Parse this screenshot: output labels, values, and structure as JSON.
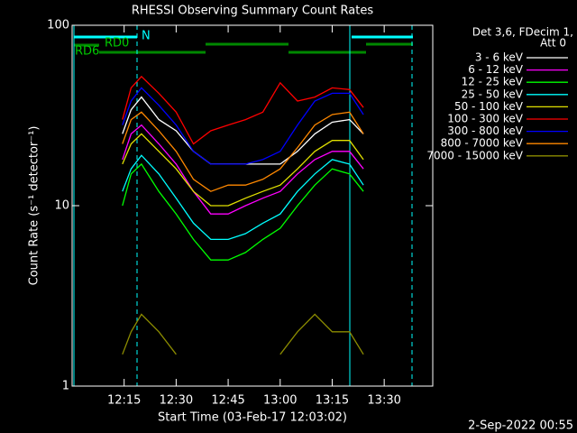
{
  "chart_data": {
    "type": "line",
    "title": "RHESSI Observing Summary Count Rates",
    "x_label": "Start Time (03-Feb-17 12:03:02)",
    "y_label": "Count Rate (s⁻¹ detector⁻¹)",
    "legend_title": [
      "Det 3,6, FDecim 1,",
      "Att 0"
    ],
    "legend": "right",
    "annotations": [
      "N",
      "RD0",
      "RD6"
    ],
    "footer": "2-Sep-2022 00:55",
    "log_y": true,
    "xlim": [
      0,
      104
    ],
    "xticks": [
      {
        "value": 15,
        "label": "12:15"
      },
      {
        "value": 30,
        "label": "12:30"
      },
      {
        "value": 45,
        "label": "12:45"
      },
      {
        "value": 60,
        "label": "13:00"
      },
      {
        "value": 75,
        "label": "13:15"
      },
      {
        "value": 90,
        "label": "13:30"
      }
    ],
    "ylim": [
      1,
      100
    ],
    "yticks": [
      1,
      10,
      100
    ],
    "x": [
      14.5,
      17,
      20,
      25,
      30,
      35,
      40,
      45,
      50,
      55,
      60,
      65,
      70,
      75,
      80,
      84
    ],
    "series": [
      {
        "name": "3 - 6 keV",
        "color": "#ffffff",
        "values": [
          25,
          34,
          40,
          30,
          26,
          20,
          17,
          17,
          17,
          17,
          17,
          20,
          25,
          29,
          30,
          25
        ]
      },
      {
        "name": "6 - 12 keV",
        "color": "#ff00ff",
        "values": [
          18,
          25,
          28,
          22,
          17,
          12,
          9,
          9,
          10,
          11,
          12,
          15,
          18,
          20,
          20,
          16
        ]
      },
      {
        "name": "12 - 25 keV",
        "color": "#00ff00",
        "values": [
          10,
          15,
          17,
          12,
          9,
          6.5,
          5,
          5,
          5.5,
          6.5,
          7.5,
          10,
          13,
          16,
          15,
          12
        ]
      },
      {
        "name": "25 - 50 keV",
        "color": "#00ffff",
        "values": [
          12,
          16,
          19,
          15,
          11,
          8,
          6.5,
          6.5,
          7,
          8,
          9,
          12,
          15,
          18,
          17,
          13
        ]
      },
      {
        "name": "50 - 100 keV",
        "color": "#e0e000",
        "values": [
          17,
          22,
          25,
          20,
          16,
          12,
          10,
          10,
          11,
          12,
          13,
          16,
          20,
          23,
          23,
          18
        ]
      },
      {
        "name": "100 - 300 keV",
        "color": "#ff0000",
        "values": [
          30,
          45,
          52,
          42,
          33,
          22,
          26,
          28,
          30,
          33,
          48,
          38,
          40,
          45,
          44,
          35
        ]
      },
      {
        "name": "300 - 800 keV",
        "color": "#0000ff",
        "values": [
          28,
          38,
          45,
          36,
          28,
          20,
          17,
          17,
          17,
          18,
          20,
          28,
          38,
          42,
          42,
          32
        ]
      },
      {
        "name": "800 - 7000 keV",
        "color": "#ff8800",
        "values": [
          22,
          30,
          33,
          26,
          20,
          14,
          12,
          13,
          13,
          14,
          16,
          21,
          28,
          32,
          33,
          25
        ]
      },
      {
        "name": "7000 - 15000 keV",
        "color": "#8c8c00",
        "values": [
          1.5,
          2,
          2.5,
          2,
          1.5,
          null,
          null,
          null,
          null,
          null,
          1.5,
          2,
          2.5,
          2,
          2,
          1.5
        ]
      }
    ]
  }
}
